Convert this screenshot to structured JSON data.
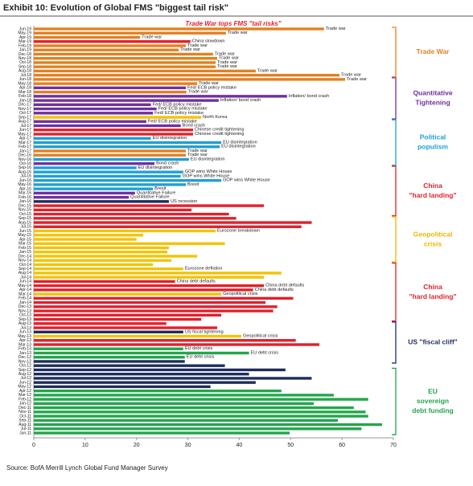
{
  "chart_data": {
    "type": "bar",
    "orientation": "horizontal",
    "title": "Exhibit 10: Evolution of Global FMS \"biggest tail risk\"",
    "headline": "Trade War tops FMS \"tail risks\"",
    "source": "Source: BofA Merrill Lynch Global Fund Manager Survey",
    "categories": [
      "Jun-19",
      "May-19",
      "Apr-19",
      "Mar-19",
      "Feb-19",
      "Jan-19",
      "Dec-18",
      "Nov-18",
      "Oct-18",
      "Sep-18",
      "Aug-18",
      "Jul-18",
      "Jun-18",
      "May-18",
      "Apr-18",
      "Mar-18",
      "Feb-18",
      "Jan-18",
      "Dec-17",
      "Nov-17",
      "Oct-17",
      "Sep-17",
      "Aug-17",
      "Jul-17",
      "Jun-17",
      "May-17",
      "Apr-17",
      "Mar-17",
      "Feb-17",
      "Jan-17",
      "Dec-16",
      "Nov-16",
      "Oct-16",
      "Sep-16",
      "Aug-16",
      "Jul-16",
      "Jun-16",
      "May-16",
      "Apr-16",
      "Mar-16",
      "Feb-16",
      "Jan-16",
      "Dec-15",
      "Nov-15",
      "Oct-15",
      "Sep-15",
      "Aug-15",
      "Jul-15",
      "Jun-15",
      "May-15",
      "Apr-15",
      "Mar-15",
      "Feb-15",
      "Jan-15",
      "Dec-14",
      "Nov-14",
      "Oct-14",
      "Sep-14",
      "Aug-14",
      "Jul-14",
      "Jun-14",
      "May-14",
      "Apr-14",
      "Mar-14",
      "Feb-14",
      "Jan-14",
      "Dec-13",
      "Nov-13",
      "Oct-13",
      "Sep-13",
      "Aug-13",
      "Jul-13",
      "Jun-13",
      "May-13",
      "Apr-13",
      "Mar-13",
      "Feb-13",
      "Jan-13",
      "Dec-12",
      "Nov-12",
      "Oct-12",
      "Sep-12",
      "Aug-12",
      "Jul-12",
      "Jun-12",
      "May-12",
      "Apr-12",
      "Mar-12",
      "Feb-12",
      "Jan-12",
      "Dec-11",
      "Nov-11",
      "Oct-11",
      "Sep-11",
      "Aug-11",
      "Jul-11",
      "Jun-11"
    ],
    "values": [
      56.5,
      37.4,
      20.7,
      30.5,
      29.6,
      28.2,
      34.9,
      35.7,
      35.4,
      35.4,
      43.2,
      59.5,
      60.6,
      31.8,
      29.6,
      29.7,
      49.3,
      36,
      22.8,
      23.9,
      23.2,
      32.6,
      21.9,
      28.6,
      31,
      31,
      22.8,
      36.5,
      36.2,
      29.6,
      29.6,
      30.2,
      23.5,
      20,
      29.1,
      28.6,
      36.5,
      29.6,
      23.2,
      19.7,
      18.5,
      26.3,
      44.8,
      30.7,
      38,
      39.4,
      54.1,
      52.1,
      35.4,
      21.3,
      20,
      37.2,
      26.3,
      26,
      31.8,
      26.8,
      23.2,
      29.1,
      48.2,
      44.8,
      27.5,
      44.8,
      42.7,
      36.5,
      50.5,
      45.1,
      47.4,
      46.6,
      36.5,
      32.6,
      25.8,
      35.7,
      29.1,
      40.4,
      51,
      55.6,
      29.1,
      41.9,
      29.4,
      29.4,
      37.2,
      49,
      41.9,
      54.1,
      43.2,
      34.4,
      48.2,
      58.4,
      65.1,
      54.5,
      62.3,
      64.6,
      65.1,
      59.2,
      67.8,
      63.8,
      49.8
    ],
    "colors": [
      "#e4801f",
      "#e4801f",
      "#e4801f",
      "#e3202b",
      "#e4801f",
      "#e4801f",
      "#e4801f",
      "#e4801f",
      "#e4801f",
      "#e4801f",
      "#e4801f",
      "#e4801f",
      "#e4801f",
      "#e4801f",
      "#7030a0",
      "#e4801f",
      "#7030a0",
      "#7030a0",
      "#7030a0",
      "#7030a0",
      "#7030a0",
      "#f4c300",
      "#7030a0",
      "#7030a0",
      "#e3202b",
      "#e3202b",
      "#1e9fd8",
      "#1e9fd8",
      "#1e9fd8",
      "#e4801f",
      "#e4801f",
      "#1e9fd8",
      "#7030a0",
      "#1e9fd8",
      "#1e9fd8",
      "#1e9fd8",
      "#1e9fd8",
      "#1e9fd8",
      "#1e9fd8",
      "#7030a0",
      "#7030a0",
      "#1f2d5c",
      "#e3202b",
      "#e3202b",
      "#e3202b",
      "#e3202b",
      "#e3202b",
      "#e3202b",
      "#f4c300",
      "#f4c300",
      "#f4c300",
      "#f4c300",
      "#f4c300",
      "#f4c300",
      "#f4c300",
      "#f4c300",
      "#f4c300",
      "#f4c300",
      "#f4c300",
      "#f4c300",
      "#e3202b",
      "#e3202b",
      "#e3202b",
      "#f4c300",
      "#e3202b",
      "#e3202b",
      "#e3202b",
      "#e3202b",
      "#e3202b",
      "#e3202b",
      "#e3202b",
      "#e3202b",
      "#1f2d5c",
      "#f4c300",
      "#e3202b",
      "#e3202b",
      "#23a64b",
      "#23a64b",
      "#23a64b",
      "#1f2d5c",
      "#1f2d5c",
      "#1f2d5c",
      "#1f2d5c",
      "#1f2d5c",
      "#1f2d5c",
      "#1f2d5c",
      "#23a64b",
      "#23a64b",
      "#23a64b",
      "#23a64b",
      "#23a64b",
      "#23a64b",
      "#23a64b",
      "#23a64b",
      "#23a64b",
      "#23a64b",
      "#23a64b"
    ],
    "annotations": [
      "Trade war",
      "Trade war",
      "Trade war",
      "China slowdown",
      "Trade war",
      "Trade war",
      "Trade war",
      "Trade war",
      "Trade war",
      "Trade war",
      "Trade war",
      "Trade war",
      "Trade war",
      "Trade war",
      "Fed/ ECB policy mistake",
      "Trade war",
      "Inflation/ bond crash",
      "Inflation/ bond crash",
      "Fed/ ECB policy mistake",
      "Fed/ ECB policy mistake",
      "Fed/ ECB policy mistake",
      "North Korea",
      "Fed/ ECB policy mistake",
      "Bond crash",
      "Chinese credit tightening",
      "Chinese credit tightening",
      "EU disintegration",
      "EU disintegration",
      "EU disintegration",
      "Trade war",
      "Trade war",
      "EU disintegration",
      "Bond crash",
      "EU disintegration",
      "GOP wins White House",
      "GOP wins White House",
      "GOP wins White House",
      "Brexit",
      "Brexit",
      "Quantitative Failure",
      "Quantitative Failure",
      "US recession",
      null,
      null,
      null,
      null,
      null,
      null,
      "Eurozone breakdown",
      null,
      null,
      null,
      null,
      null,
      null,
      null,
      null,
      "Eurozone deflation",
      null,
      null,
      "China debt defaults",
      "China debt defaults",
      "China debt defaults",
      "Geopolitical crisis",
      null,
      null,
      null,
      null,
      null,
      null,
      null,
      null,
      "US fiscal tightening",
      "Geopolitical crisis",
      null,
      null,
      "EU debt crisis",
      "EU debt crisis",
      "EU debt crisis",
      null,
      null,
      null,
      null,
      null,
      null,
      null,
      null,
      null,
      null,
      null,
      null,
      null,
      null,
      null,
      null,
      null,
      null
    ],
    "groups": [
      {
        "label": [
          "Trade War"
        ],
        "color": "#e4801f",
        "from": "Jun-19",
        "to": "Jul-18"
      },
      {
        "label": [
          "Quantitative",
          "Tightening"
        ],
        "color": "#7030a0",
        "from": "Jun-18",
        "to": "Sep-17"
      },
      {
        "label": [
          "Political",
          "populism"
        ],
        "color": "#1e9fd8",
        "from": "Aug-17",
        "to": "Oct-16"
      },
      {
        "label": [
          "China",
          "\"hard landing\""
        ],
        "color": "#e3202b",
        "from": "Sep-16",
        "to": "Oct-15"
      },
      {
        "label": [
          "Geopolitical",
          "crisis"
        ],
        "color": "#f0b400",
        "from": "Sep-15",
        "to": "Nov-14"
      },
      {
        "label": [
          "China",
          "\"hard landing\""
        ],
        "color": "#e3202b",
        "from": "Oct-14",
        "to": "Sep-13"
      },
      {
        "label": [
          "US \"fiscal cliff\""
        ],
        "color": "#1f2d5c",
        "from": "Aug-13",
        "to": "Nov-12"
      },
      {
        "label": [
          "EU",
          "sovereign",
          "debt funding"
        ],
        "color": "#23a64b",
        "from": "Sep-12",
        "to": "Jun-11"
      }
    ],
    "xlim": [
      0,
      70
    ],
    "xticks": [
      0,
      10,
      20,
      30,
      40,
      50,
      60,
      70
    ]
  }
}
